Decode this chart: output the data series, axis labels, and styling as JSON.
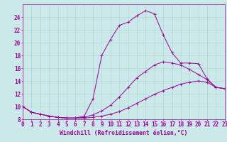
{
  "xlabel": "Windchill (Refroidissement éolien,°C)",
  "background_color": "#cce9e9",
  "line_color": "#990099",
  "xlim": [
    0,
    23
  ],
  "ylim": [
    8,
    26
  ],
  "xticks": [
    0,
    1,
    2,
    3,
    4,
    5,
    6,
    7,
    8,
    9,
    10,
    11,
    12,
    13,
    14,
    15,
    16,
    17,
    18,
    19,
    20,
    21,
    22,
    23
  ],
  "yticks": [
    8,
    10,
    12,
    14,
    16,
    18,
    20,
    22,
    24
  ],
  "grid_color": "#aad4d4",
  "line1_x": [
    0,
    1,
    2,
    3,
    4,
    5,
    6,
    7,
    8,
    9,
    10,
    11,
    12,
    13,
    14,
    15,
    16,
    17,
    18,
    19,
    20,
    21,
    22,
    23
  ],
  "line1_y": [
    10.0,
    9.1,
    8.8,
    8.5,
    8.3,
    8.2,
    8.2,
    8.2,
    8.3,
    8.5,
    8.8,
    9.2,
    9.8,
    10.5,
    11.2,
    11.9,
    12.5,
    13.0,
    13.5,
    13.8,
    14.0,
    13.8,
    13.0,
    12.8
  ],
  "line2_x": [
    0,
    1,
    2,
    3,
    4,
    5,
    6,
    7,
    8,
    9,
    10,
    11,
    12,
    13,
    14,
    15,
    16,
    17,
    18,
    19,
    20,
    21,
    22,
    23
  ],
  "line2_y": [
    10.0,
    9.1,
    8.8,
    8.5,
    8.3,
    8.2,
    8.2,
    8.3,
    8.7,
    9.3,
    10.2,
    11.5,
    13.0,
    14.5,
    15.5,
    16.5,
    17.0,
    16.8,
    16.5,
    15.8,
    15.0,
    14.2,
    13.0,
    12.8
  ],
  "line3_x": [
    0,
    1,
    2,
    3,
    4,
    5,
    6,
    7,
    8,
    9,
    10,
    11,
    12,
    13,
    14,
    15,
    16,
    17,
    18,
    19,
    20,
    21,
    22,
    23
  ],
  "line3_y": [
    10.0,
    9.1,
    8.8,
    8.5,
    8.3,
    8.2,
    8.2,
    8.5,
    11.2,
    18.0,
    20.5,
    22.7,
    23.2,
    24.2,
    25.0,
    24.5,
    21.2,
    18.4,
    16.8,
    16.8,
    16.7,
    14.3,
    13.0,
    12.8
  ],
  "fontsize_ticks": 5.5,
  "fontsize_label": 5.8,
  "markersize": 2.5,
  "linewidth": 0.7
}
